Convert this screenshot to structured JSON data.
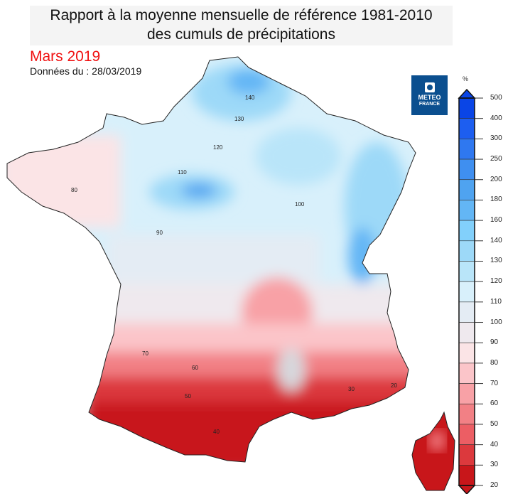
{
  "header": {
    "title_line1": "Rapport à la moyenne mensuelle de référence 1981-2010",
    "title_line2": "des cumuls de précipitations",
    "month": "Mars 2019",
    "date": "Données du : 28/03/2019"
  },
  "logo": {
    "line1": "METEO",
    "line2": "FRANCE"
  },
  "legend": {
    "unit": "%",
    "ticks": [
      "500",
      "400",
      "300",
      "250",
      "200",
      "180",
      "160",
      "140",
      "130",
      "120",
      "110",
      "100",
      "90",
      "80",
      "70",
      "60",
      "50",
      "40",
      "30",
      "20"
    ],
    "colors": [
      "#0a45e6",
      "#1d5ef0",
      "#2f78f0",
      "#3f8ff0",
      "#4fa3f0",
      "#63b6f5",
      "#82d0fb",
      "#9dd9f8",
      "#b9e5f9",
      "#d8f0fb",
      "#e4ecf4",
      "#efe9ee",
      "#fbe4e6",
      "#fbc5c9",
      "#f8a1a6",
      "#f28085",
      "#ec5e64",
      "#dc393d",
      "#c8161a"
    ]
  },
  "map_labels": [
    "140",
    "130",
    "120",
    "110",
    "100",
    "90",
    "80",
    "70",
    "60",
    "50",
    "40",
    "30",
    "20"
  ]
}
